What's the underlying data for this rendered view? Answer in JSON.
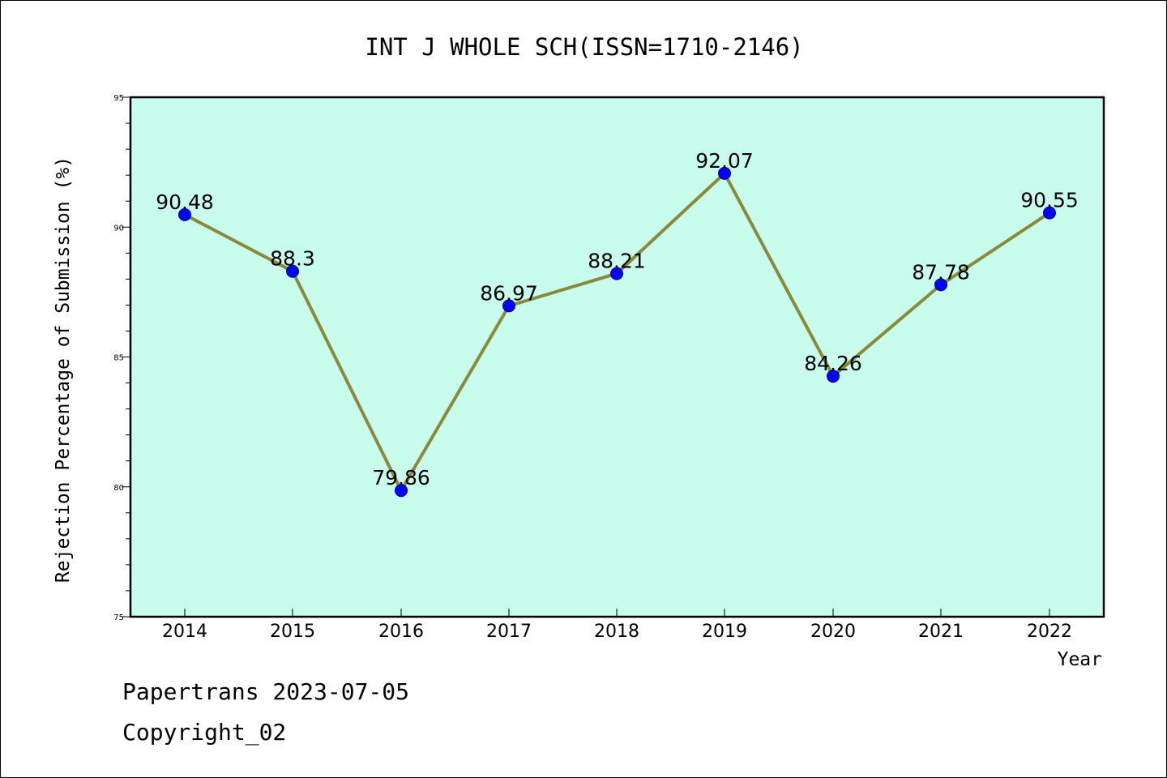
{
  "chart_data": {
    "type": "line",
    "title": "INT J WHOLE SCH(ISSN=1710-2146)",
    "xlabel": "Year",
    "ylabel": "Rejection Percentage of Submission (%)",
    "categories": [
      "2014",
      "2015",
      "2016",
      "2017",
      "2018",
      "2019",
      "2020",
      "2021",
      "2022"
    ],
    "series": [
      {
        "values": [
          90.48,
          88.3,
          79.86,
          86.97,
          88.21,
          92.07,
          84.26,
          87.78,
          90.55
        ],
        "labels": [
          "90.48",
          "88.3",
          "79.86",
          "86.97",
          "88.21",
          "92.07",
          "84.26",
          "87.78",
          "90.55"
        ]
      }
    ],
    "ylim": [
      75,
      95
    ],
    "yticks": [
      "75",
      "80",
      "85",
      "90",
      "95"
    ],
    "grid": false,
    "colors": {
      "plot_background": "#c8fced",
      "line": "#8b8a3a",
      "marker": "#0000ff"
    }
  },
  "footer": {
    "date_line": "Papertrans 2023-07-05",
    "copyright_line": "Copyright_02"
  }
}
